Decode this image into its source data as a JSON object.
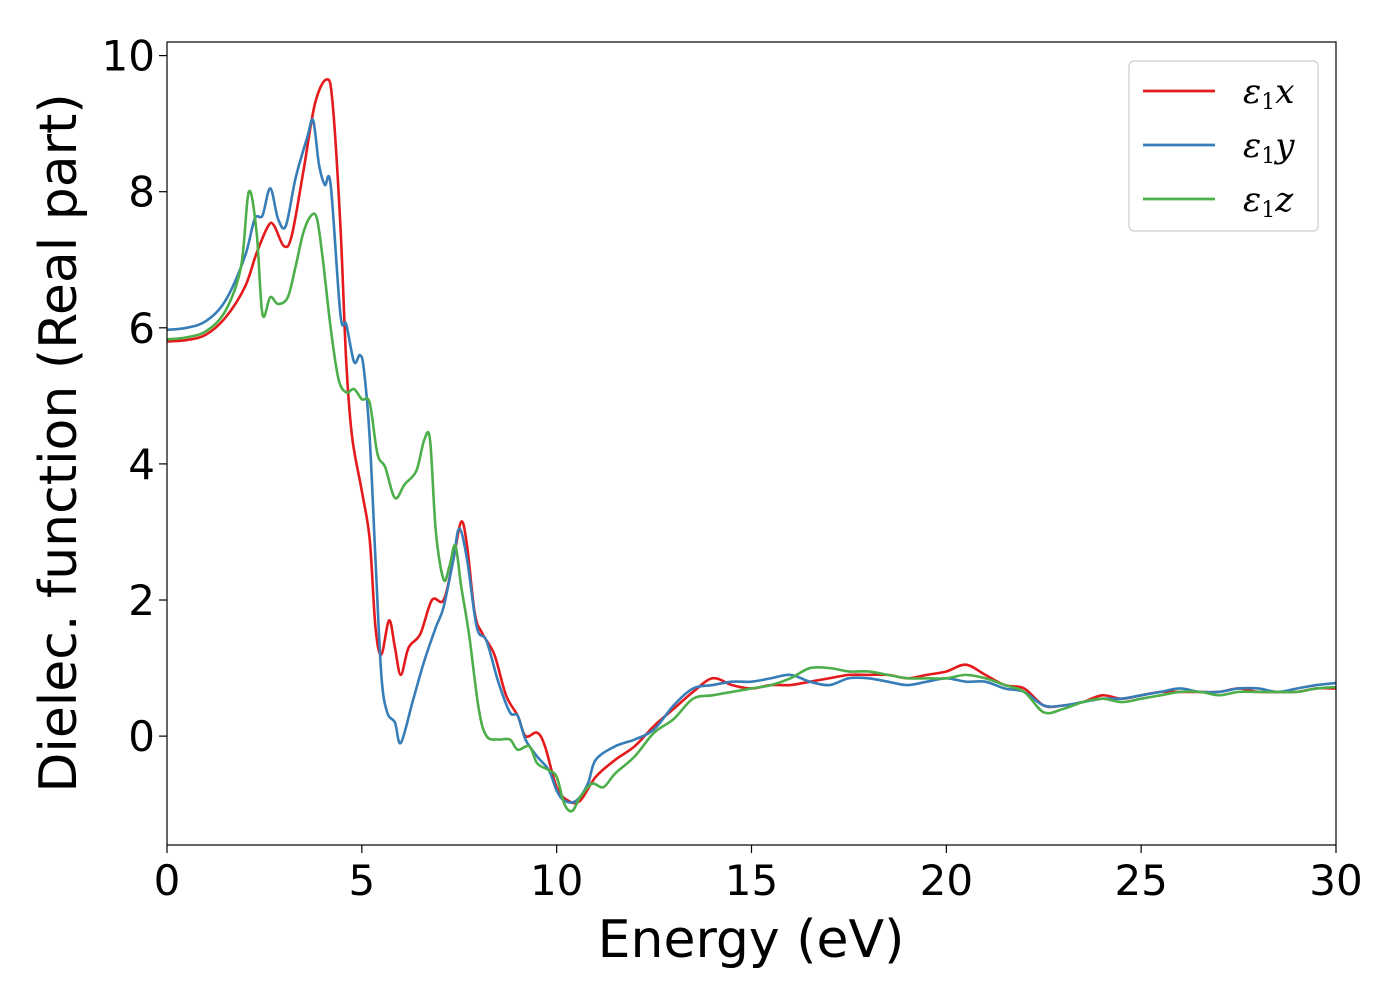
{
  "chart_data": {
    "type": "line",
    "title": "",
    "xlabel": "Energy (eV)",
    "ylabel": "Dielec. function (Real part)",
    "xlim": [
      0,
      30
    ],
    "ylim": [
      -1.6,
      10.2
    ],
    "xticks": [
      "0",
      "5",
      "10",
      "15",
      "20",
      "25",
      "30"
    ],
    "yticks": [
      "0",
      "2",
      "4",
      "6",
      "8",
      "10"
    ],
    "grid": false,
    "legend_position": "top-right",
    "series": [
      {
        "name_base": "ε",
        "name_sub": "1",
        "name_suffix": "x",
        "color": "#e41a1c",
        "points": [
          [
            0,
            5.8
          ],
          [
            0.5,
            5.82
          ],
          [
            1,
            5.9
          ],
          [
            1.5,
            6.15
          ],
          [
            2,
            6.6
          ],
          [
            2.3,
            7.1
          ],
          [
            2.6,
            7.5
          ],
          [
            2.75,
            7.5
          ],
          [
            3,
            7.2
          ],
          [
            3.2,
            7.35
          ],
          [
            3.5,
            8.3
          ],
          [
            3.8,
            9.3
          ],
          [
            4.1,
            9.65
          ],
          [
            4.25,
            9.3
          ],
          [
            4.45,
            7.5
          ],
          [
            4.6,
            5.5
          ],
          [
            4.75,
            4.4
          ],
          [
            5,
            3.6
          ],
          [
            5.2,
            2.9
          ],
          [
            5.35,
            1.6
          ],
          [
            5.5,
            1.2
          ],
          [
            5.7,
            1.7
          ],
          [
            5.85,
            1.3
          ],
          [
            6,
            0.9
          ],
          [
            6.2,
            1.3
          ],
          [
            6.5,
            1.5
          ],
          [
            6.8,
            2.0
          ],
          [
            7.1,
            2.0
          ],
          [
            7.35,
            2.6
          ],
          [
            7.55,
            3.15
          ],
          [
            7.7,
            2.8
          ],
          [
            7.9,
            1.8
          ],
          [
            8.1,
            1.5
          ],
          [
            8.4,
            1.2
          ],
          [
            8.7,
            0.6
          ],
          [
            9.0,
            0.3
          ],
          [
            9.2,
            0.0
          ],
          [
            9.5,
            0.05
          ],
          [
            9.7,
            -0.15
          ],
          [
            10.0,
            -0.75
          ],
          [
            10.3,
            -0.95
          ],
          [
            10.6,
            -0.95
          ],
          [
            11.0,
            -0.6
          ],
          [
            11.5,
            -0.35
          ],
          [
            12.0,
            -0.15
          ],
          [
            12.5,
            0.15
          ],
          [
            13.0,
            0.4
          ],
          [
            13.5,
            0.65
          ],
          [
            14.0,
            0.85
          ],
          [
            14.5,
            0.75
          ],
          [
            15.0,
            0.7
          ],
          [
            15.5,
            0.75
          ],
          [
            16.0,
            0.75
          ],
          [
            16.5,
            0.8
          ],
          [
            17.0,
            0.85
          ],
          [
            17.5,
            0.9
          ],
          [
            18.0,
            0.9
          ],
          [
            18.5,
            0.9
          ],
          [
            19.0,
            0.85
          ],
          [
            19.5,
            0.9
          ],
          [
            20.0,
            0.95
          ],
          [
            20.5,
            1.05
          ],
          [
            21.0,
            0.9
          ],
          [
            21.5,
            0.75
          ],
          [
            22.0,
            0.7
          ],
          [
            22.5,
            0.45
          ],
          [
            23.0,
            0.45
          ],
          [
            23.5,
            0.5
          ],
          [
            24.0,
            0.6
          ],
          [
            24.5,
            0.55
          ],
          [
            25.0,
            0.6
          ],
          [
            25.5,
            0.65
          ],
          [
            26.0,
            0.65
          ],
          [
            26.5,
            0.65
          ],
          [
            27.0,
            0.65
          ],
          [
            27.5,
            0.7
          ],
          [
            28.0,
            0.65
          ],
          [
            28.5,
            0.65
          ],
          [
            29.0,
            0.65
          ],
          [
            29.5,
            0.7
          ],
          [
            30.0,
            0.7
          ]
        ]
      },
      {
        "name_base": "ε",
        "name_sub": "1",
        "name_suffix": "y",
        "color": "#377eb8",
        "points": [
          [
            0,
            5.97
          ],
          [
            0.5,
            6.0
          ],
          [
            1,
            6.1
          ],
          [
            1.5,
            6.4
          ],
          [
            2,
            7.05
          ],
          [
            2.25,
            7.6
          ],
          [
            2.45,
            7.65
          ],
          [
            2.65,
            8.05
          ],
          [
            2.85,
            7.6
          ],
          [
            3.05,
            7.5
          ],
          [
            3.3,
            8.2
          ],
          [
            3.6,
            8.8
          ],
          [
            3.75,
            9.05
          ],
          [
            3.9,
            8.4
          ],
          [
            4.05,
            8.1
          ],
          [
            4.2,
            8.1
          ],
          [
            4.45,
            6.2
          ],
          [
            4.6,
            6.05
          ],
          [
            4.8,
            5.5
          ],
          [
            4.95,
            5.6
          ],
          [
            5.05,
            5.4
          ],
          [
            5.2,
            4.4
          ],
          [
            5.35,
            2.6
          ],
          [
            5.5,
            0.9
          ],
          [
            5.65,
            0.35
          ],
          [
            5.85,
            0.2
          ],
          [
            6.0,
            -0.1
          ],
          [
            6.3,
            0.5
          ],
          [
            6.6,
            1.1
          ],
          [
            6.9,
            1.6
          ],
          [
            7.1,
            1.9
          ],
          [
            7.35,
            2.6
          ],
          [
            7.5,
            3.05
          ],
          [
            7.7,
            2.6
          ],
          [
            7.95,
            1.6
          ],
          [
            8.2,
            1.4
          ],
          [
            8.5,
            0.8
          ],
          [
            8.8,
            0.35
          ],
          [
            9.0,
            0.3
          ],
          [
            9.2,
            -0.05
          ],
          [
            9.5,
            -0.3
          ],
          [
            9.8,
            -0.5
          ],
          [
            10.0,
            -0.8
          ],
          [
            10.2,
            -0.95
          ],
          [
            10.5,
            -0.95
          ],
          [
            10.8,
            -0.7
          ],
          [
            11.0,
            -0.35
          ],
          [
            11.5,
            -0.15
          ],
          [
            12.0,
            -0.05
          ],
          [
            12.5,
            0.1
          ],
          [
            13.0,
            0.45
          ],
          [
            13.5,
            0.7
          ],
          [
            14.0,
            0.75
          ],
          [
            14.5,
            0.8
          ],
          [
            15.0,
            0.8
          ],
          [
            15.5,
            0.85
          ],
          [
            16.0,
            0.9
          ],
          [
            16.5,
            0.8
          ],
          [
            17.0,
            0.75
          ],
          [
            17.5,
            0.85
          ],
          [
            18.0,
            0.85
          ],
          [
            18.5,
            0.8
          ],
          [
            19.0,
            0.75
          ],
          [
            19.5,
            0.8
          ],
          [
            20.0,
            0.85
          ],
          [
            20.5,
            0.8
          ],
          [
            21.0,
            0.8
          ],
          [
            21.5,
            0.7
          ],
          [
            22.0,
            0.65
          ],
          [
            22.5,
            0.45
          ],
          [
            23.0,
            0.45
          ],
          [
            23.5,
            0.5
          ],
          [
            24.0,
            0.55
          ],
          [
            24.5,
            0.55
          ],
          [
            25.0,
            0.6
          ],
          [
            25.5,
            0.65
          ],
          [
            26.0,
            0.7
          ],
          [
            26.5,
            0.65
          ],
          [
            27.0,
            0.65
          ],
          [
            27.5,
            0.7
          ],
          [
            28.0,
            0.7
          ],
          [
            28.5,
            0.65
          ],
          [
            29.0,
            0.7
          ],
          [
            29.5,
            0.75
          ],
          [
            30.0,
            0.78
          ]
        ]
      },
      {
        "name_base": "ε",
        "name_sub": "1",
        "name_suffix": "z",
        "color": "#4daf4a",
        "points": [
          [
            0,
            5.83
          ],
          [
            0.5,
            5.86
          ],
          [
            1,
            5.95
          ],
          [
            1.5,
            6.25
          ],
          [
            1.9,
            6.9
          ],
          [
            2.1,
            8.0
          ],
          [
            2.3,
            7.4
          ],
          [
            2.45,
            6.2
          ],
          [
            2.65,
            6.45
          ],
          [
            2.85,
            6.35
          ],
          [
            3.1,
            6.45
          ],
          [
            3.3,
            6.9
          ],
          [
            3.5,
            7.4
          ],
          [
            3.7,
            7.65
          ],
          [
            3.85,
            7.6
          ],
          [
            4.0,
            7.0
          ],
          [
            4.2,
            6.0
          ],
          [
            4.4,
            5.25
          ],
          [
            4.6,
            5.05
          ],
          [
            4.8,
            5.1
          ],
          [
            5.0,
            4.95
          ],
          [
            5.2,
            4.9
          ],
          [
            5.4,
            4.15
          ],
          [
            5.6,
            3.95
          ],
          [
            5.85,
            3.5
          ],
          [
            6.1,
            3.7
          ],
          [
            6.4,
            3.9
          ],
          [
            6.6,
            4.35
          ],
          [
            6.75,
            4.35
          ],
          [
            6.9,
            3.0
          ],
          [
            7.1,
            2.3
          ],
          [
            7.25,
            2.5
          ],
          [
            7.4,
            2.8
          ],
          [
            7.55,
            2.2
          ],
          [
            7.75,
            1.5
          ],
          [
            8.0,
            0.4
          ],
          [
            8.2,
            0.0
          ],
          [
            8.5,
            -0.05
          ],
          [
            8.8,
            -0.05
          ],
          [
            9.0,
            -0.2
          ],
          [
            9.3,
            -0.15
          ],
          [
            9.5,
            -0.4
          ],
          [
            9.8,
            -0.5
          ],
          [
            10.0,
            -0.6
          ],
          [
            10.2,
            -1.0
          ],
          [
            10.4,
            -1.1
          ],
          [
            10.6,
            -0.9
          ],
          [
            10.9,
            -0.7
          ],
          [
            11.2,
            -0.75
          ],
          [
            11.5,
            -0.55
          ],
          [
            12.0,
            -0.3
          ],
          [
            12.5,
            0.05
          ],
          [
            13.0,
            0.25
          ],
          [
            13.5,
            0.55
          ],
          [
            14.0,
            0.6
          ],
          [
            14.5,
            0.65
          ],
          [
            15.0,
            0.7
          ],
          [
            15.5,
            0.75
          ],
          [
            16.0,
            0.85
          ],
          [
            16.5,
            1.0
          ],
          [
            17.0,
            1.0
          ],
          [
            17.5,
            0.95
          ],
          [
            18.0,
            0.95
          ],
          [
            18.5,
            0.9
          ],
          [
            19.0,
            0.85
          ],
          [
            19.5,
            0.85
          ],
          [
            20.0,
            0.85
          ],
          [
            20.5,
            0.9
          ],
          [
            21.0,
            0.85
          ],
          [
            21.5,
            0.75
          ],
          [
            22.0,
            0.65
          ],
          [
            22.5,
            0.35
          ],
          [
            23.0,
            0.4
          ],
          [
            23.5,
            0.5
          ],
          [
            24.0,
            0.55
          ],
          [
            24.5,
            0.5
          ],
          [
            25.0,
            0.55
          ],
          [
            25.5,
            0.6
          ],
          [
            26.0,
            0.65
          ],
          [
            26.5,
            0.65
          ],
          [
            27.0,
            0.6
          ],
          [
            27.5,
            0.65
          ],
          [
            28.0,
            0.65
          ],
          [
            28.5,
            0.65
          ],
          [
            29.0,
            0.65
          ],
          [
            29.5,
            0.7
          ],
          [
            30.0,
            0.72
          ]
        ]
      }
    ]
  }
}
